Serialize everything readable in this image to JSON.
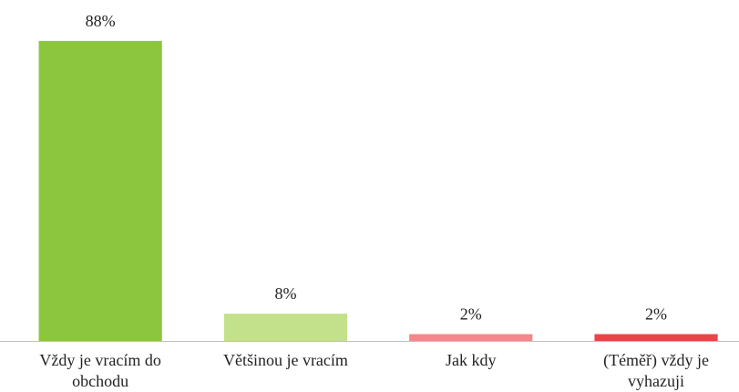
{
  "chart_data": {
    "type": "bar",
    "categories": [
      "Vždy je vracím do obchodu",
      "Většinou je vracím",
      "Jak kdy",
      "(Téměř) vždy je vyhazuji"
    ],
    "values": [
      88,
      8,
      2,
      2
    ],
    "value_labels": [
      "88%",
      "8%",
      "2%",
      "2%"
    ],
    "colors": [
      "#8cc63e",
      "#c3e18b",
      "#f4878a",
      "#ea4448"
    ]
  }
}
